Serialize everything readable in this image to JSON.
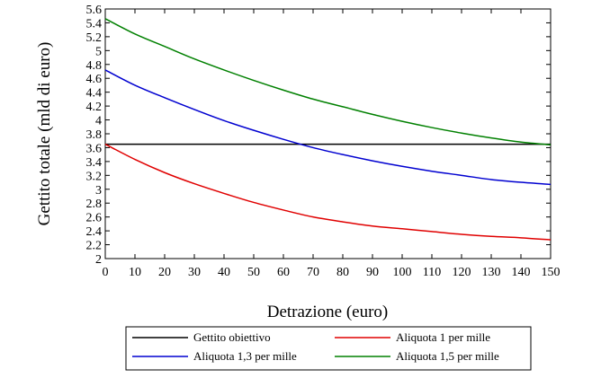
{
  "chart_data": {
    "type": "line",
    "xlabel": "Detrazione (euro)",
    "ylabel": "Gettito totale (mld di euro)",
    "xlim": [
      0,
      150
    ],
    "ylim": [
      2,
      5.6
    ],
    "x_ticks": [
      "0",
      "10",
      "20",
      "30",
      "40",
      "50",
      "60",
      "70",
      "80",
      "90",
      "100",
      "110",
      "120",
      "130",
      "140",
      "150"
    ],
    "y_ticks": [
      "2",
      "2.2",
      "2.4",
      "2.6",
      "2.8",
      "3",
      "3.2",
      "3.4",
      "3.6",
      "3.8",
      "4",
      "4.2",
      "4.4",
      "4.6",
      "4.8",
      "5",
      "5.2",
      "5.4",
      "5.6"
    ],
    "grid": false,
    "legend_position": "bottom",
    "x": [
      0,
      10,
      20,
      30,
      40,
      50,
      60,
      70,
      80,
      90,
      100,
      110,
      120,
      130,
      140,
      150
    ],
    "series": [
      {
        "name": "Gettito obiettivo",
        "color": "#000000",
        "values": [
          3.65,
          3.65,
          3.65,
          3.65,
          3.65,
          3.65,
          3.65,
          3.65,
          3.65,
          3.65,
          3.65,
          3.65,
          3.65,
          3.65,
          3.65,
          3.65
        ]
      },
      {
        "name": "Aliquota 1 per mille",
        "color": "#e00000",
        "values": [
          3.65,
          3.43,
          3.24,
          3.08,
          2.94,
          2.81,
          2.7,
          2.6,
          2.53,
          2.47,
          2.43,
          2.39,
          2.35,
          2.32,
          2.3,
          2.27
        ]
      },
      {
        "name": "Aliquota 1,3 per mille",
        "color": "#0000d0",
        "values": [
          4.72,
          4.5,
          4.32,
          4.15,
          3.99,
          3.85,
          3.72,
          3.6,
          3.5,
          3.41,
          3.33,
          3.26,
          3.2,
          3.14,
          3.1,
          3.07
        ]
      },
      {
        "name": "Aliquota 1,5 per mille",
        "color": "#008000",
        "values": [
          5.46,
          5.24,
          5.06,
          4.88,
          4.72,
          4.57,
          4.43,
          4.3,
          4.19,
          4.08,
          3.98,
          3.89,
          3.81,
          3.74,
          3.68,
          3.64
        ]
      }
    ]
  }
}
